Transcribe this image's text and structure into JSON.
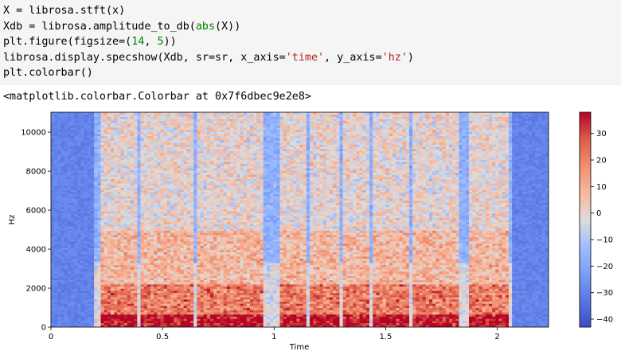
{
  "code_cell": {
    "lines": [
      [
        {
          "t": "X = librosa.stft(x)",
          "c": ""
        }
      ],
      [
        {
          "t": "Xdb = librosa.amplitude_to_db(",
          "c": ""
        },
        {
          "t": "abs",
          "c": "tok-fn"
        },
        {
          "t": "(X))",
          "c": ""
        }
      ],
      [
        {
          "t": "plt.figure(figsize=(",
          "c": ""
        },
        {
          "t": "14",
          "c": "tok-num"
        },
        {
          "t": ", ",
          "c": ""
        },
        {
          "t": "5",
          "c": "tok-num"
        },
        {
          "t": "))",
          "c": ""
        }
      ],
      [
        {
          "t": "librosa.display.specshow(Xdb, sr=sr, x_axis=",
          "c": ""
        },
        {
          "t": "'time'",
          "c": "tok-str"
        },
        {
          "t": ", y_axis=",
          "c": ""
        },
        {
          "t": "'hz'",
          "c": "tok-str"
        },
        {
          "t": ")",
          "c": ""
        }
      ],
      [
        {
          "t": "plt.colorbar()",
          "c": ""
        }
      ]
    ]
  },
  "output_text": "<matplotlib.colorbar.Colorbar at 0x7f6dbec9e2e8>",
  "chart_data": {
    "type": "heatmap",
    "xlabel": "Time",
    "ylabel": "Hz",
    "xlim": [
      0,
      2.23
    ],
    "ylim": [
      0,
      11025
    ],
    "x_ticks": [
      "0",
      "0.5",
      "1",
      "1.5",
      "2"
    ],
    "x_tick_values": [
      0,
      0.5,
      1,
      1.5,
      2
    ],
    "y_ticks": [
      "0",
      "2000",
      "4000",
      "6000",
      "8000",
      "10000"
    ],
    "y_tick_values": [
      0,
      2000,
      4000,
      6000,
      8000,
      10000
    ],
    "colorbar": {
      "ticks": [
        "30",
        "20",
        "10",
        "0",
        "−10",
        "−20",
        "−30",
        "−40"
      ],
      "tick_values": [
        30,
        20,
        10,
        0,
        -10,
        -20,
        -30,
        -40
      ],
      "range": [
        -43,
        38
      ],
      "colormap": "coolwarm"
    }
  }
}
